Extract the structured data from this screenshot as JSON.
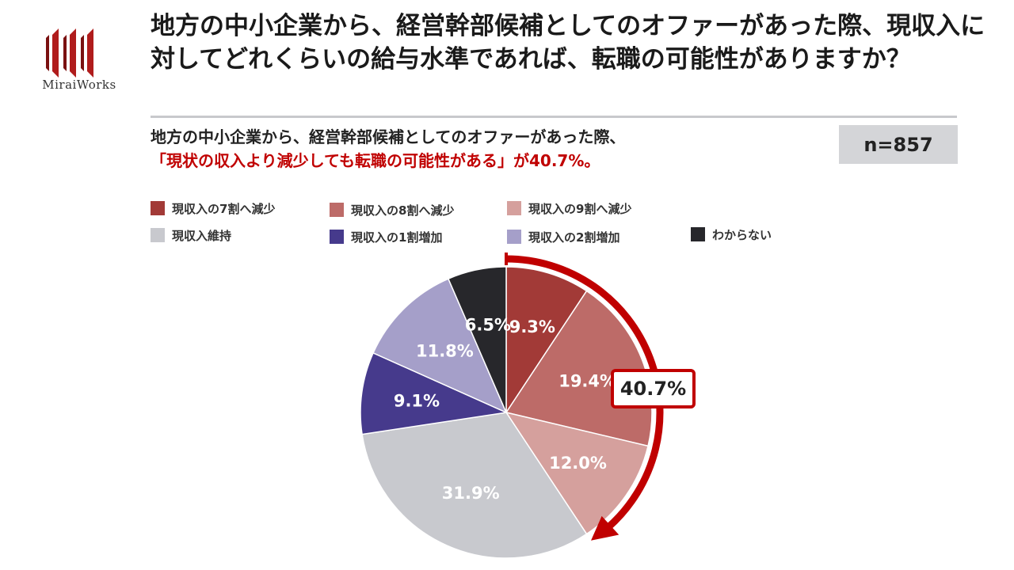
{
  "brand": {
    "name": "MiraiWorks",
    "logo_text": "MiraiWorks",
    "accent": "#c00000"
  },
  "header": {
    "title": "地方の中小企業から、経営幹部候補としてのオファーがあった際、現収入に対してどれくらいの給与水準であれば、転職の可能性がありますか？"
  },
  "subtitle": {
    "line1": "地方の中小企業から、経営幹部候補としてのオファーがあった際、",
    "line2": "「現状の収入より減少しても転職の可能性がある」が40.7%。"
  },
  "sample": {
    "n_label": "n=857"
  },
  "chart_data": {
    "type": "pie",
    "title": "地方の中小企業から、経営幹部候補としてのオファーがあった際、現収入に対してどれくらいの給与水準であれば、転職の可能性がありますか？",
    "n": 857,
    "start": "12 o'clock, clockwise",
    "slices": [
      {
        "label": "現収入の7割へ減少",
        "value": 9.3,
        "display": "9.3%",
        "color": "#a23a37"
      },
      {
        "label": "現収入の8割へ減少",
        "value": 19.4,
        "display": "19.4%",
        "color": "#bd6b68"
      },
      {
        "label": "現収入の9割へ減少",
        "value": 12.0,
        "display": "12.0%",
        "color": "#d5a09d"
      },
      {
        "label": "現収入維持",
        "value": 31.9,
        "display": "31.9%",
        "color": "#c8c9ce"
      },
      {
        "label": "現収入の1割増加",
        "value": 9.1,
        "display": "9.1%",
        "color": "#463a8c"
      },
      {
        "label": "現収入の2割増加",
        "value": 11.8,
        "display": "11.8%",
        "color": "#a59fc9"
      },
      {
        "label": "わからない",
        "value": 6.5,
        "display": "6.5%",
        "color": "#27272b"
      }
    ],
    "legend": [
      "現収入の7割へ減少",
      "現収入の8割へ減少",
      "現収入の9割へ減少",
      "現収入維持",
      "現収入の1割増加",
      "現収入の2割増加",
      "わからない"
    ],
    "callout": {
      "label": "40.7%",
      "value": 40.7,
      "covers": [
        "現収入の7割へ減少",
        "現収入の8割へ減少",
        "現収入の9割へ減少"
      ],
      "color": "#c00000"
    }
  }
}
